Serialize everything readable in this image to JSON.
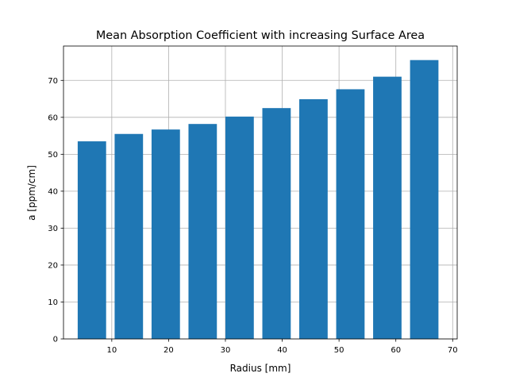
{
  "chart_data": {
    "type": "bar",
    "title": "Mean Absorption Coefficient with increasing Surface Area",
    "xlabel": "Radius [mm]",
    "ylabel": "a [ppm/cm]",
    "x": [
      6.5,
      13.0,
      19.5,
      26.0,
      32.5,
      39.0,
      45.5,
      52.0,
      58.5,
      65.0
    ],
    "values": [
      53.5,
      55.5,
      56.7,
      58.2,
      60.2,
      62.5,
      64.9,
      67.6,
      71.0,
      75.5
    ],
    "bar_width": 5.0,
    "xlim": [
      1.5,
      70.8
    ],
    "ylim": [
      0,
      79.3
    ],
    "xticks": [
      10,
      20,
      30,
      40,
      50,
      60,
      70
    ],
    "yticks": [
      0,
      10,
      20,
      30,
      40,
      50,
      60,
      70
    ],
    "grid": true,
    "bar_color": "#1f77b4"
  }
}
